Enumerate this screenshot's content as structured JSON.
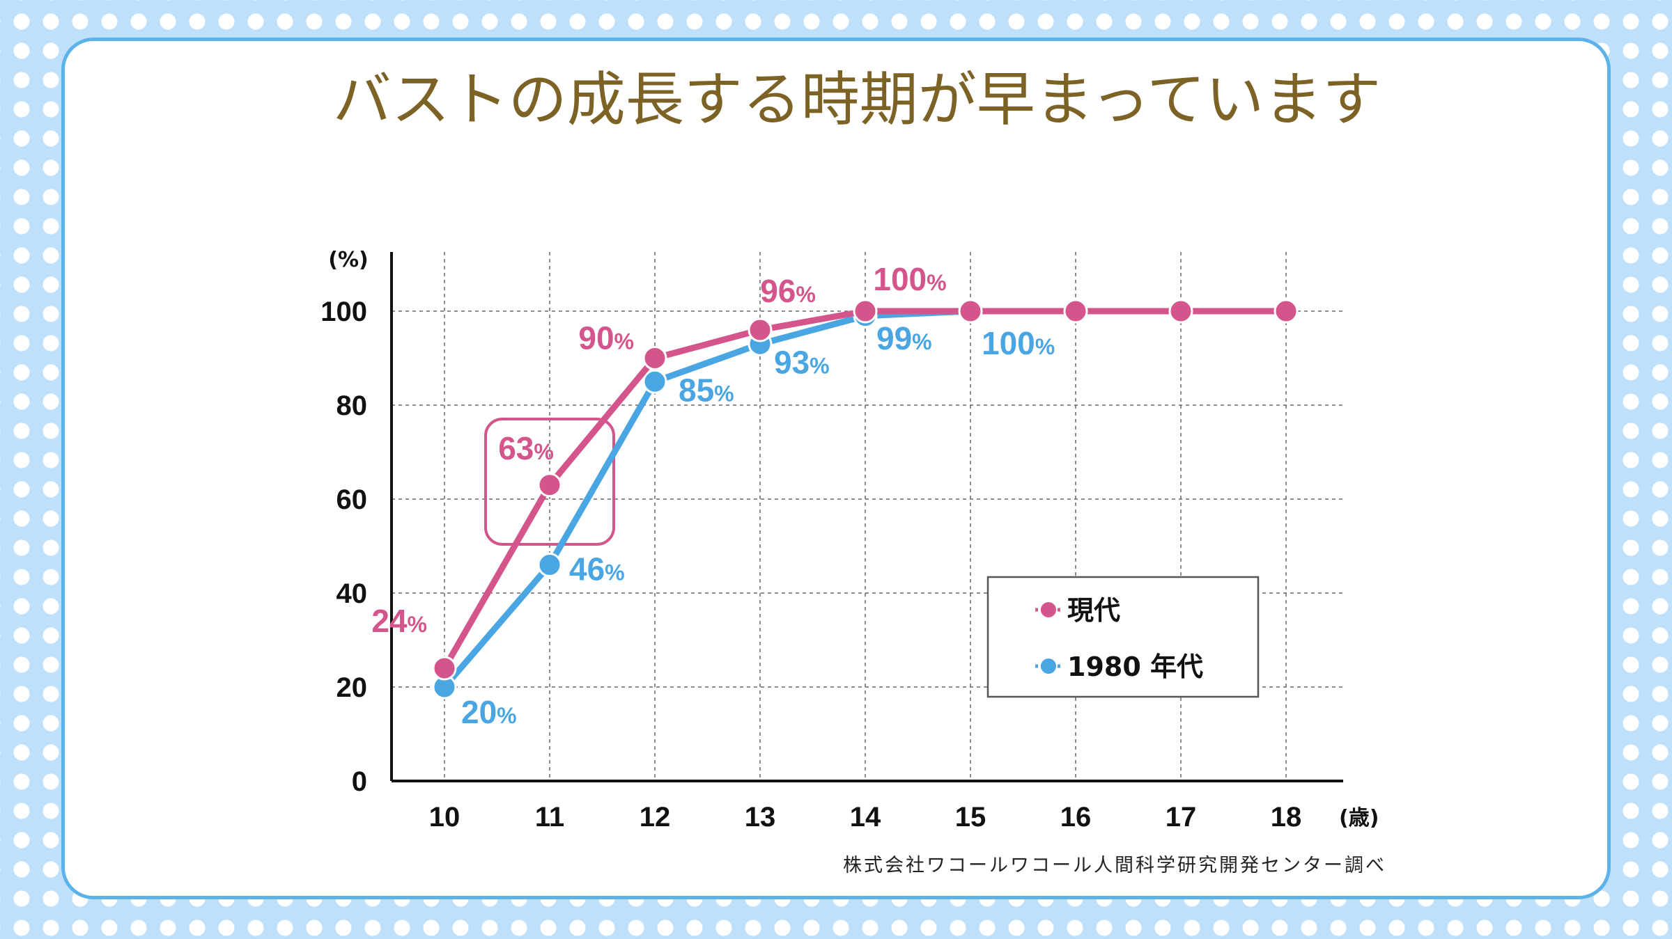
{
  "chart_data": {
    "type": "line",
    "title": "バストの成長する時期が早まっています",
    "y_unit": "(%)",
    "x_unit": "(歳)",
    "x": [
      "10",
      "11",
      "12",
      "13",
      "14",
      "15",
      "16",
      "17",
      "18"
    ],
    "y_ticks": [
      "0",
      "20",
      "40",
      "60",
      "80",
      "100"
    ],
    "ylim": [
      0,
      100
    ],
    "grid": true,
    "legend_position": "bottom-right",
    "series": [
      {
        "name": "現代",
        "color": "#d4548c",
        "values": [
          24,
          63,
          90,
          96,
          100,
          100,
          100,
          100,
          100
        ],
        "labels": [
          "24%",
          "63%",
          "90%",
          "96%",
          "100%",
          null,
          null,
          null,
          null
        ]
      },
      {
        "name": "1980 年代",
        "color": "#4aa6e2",
        "values": [
          20,
          46,
          85,
          93,
          99,
          100,
          null,
          null,
          null
        ],
        "labels": [
          "20%",
          "46%",
          "85%",
          "93%",
          "99%",
          "100%",
          null,
          null,
          null
        ]
      }
    ],
    "highlight_x": "11",
    "source": "株式会社ワコールワコール人間科学研究開発センター調べ"
  }
}
